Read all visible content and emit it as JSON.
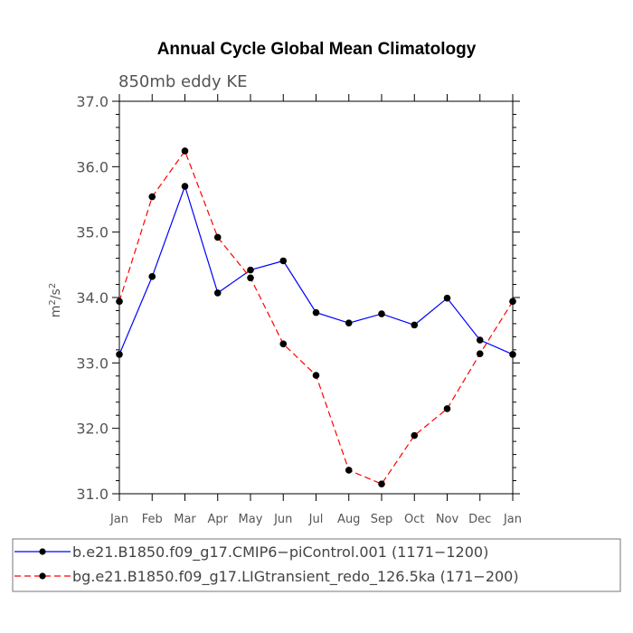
{
  "chart_data": {
    "type": "line",
    "title": "Annual Cycle Global Mean Climatology",
    "subtitle": "850mb eddy KE",
    "ylabel_base": "m",
    "ylabel_exp1": "2",
    "ylabel_sep": "/s",
    "ylabel_exp2": "2",
    "ylabel": "m²/s²",
    "xlabel": "",
    "categories": [
      "Jan",
      "Feb",
      "Mar",
      "Apr",
      "May",
      "Jun",
      "Jul",
      "Aug",
      "Sep",
      "Oct",
      "Nov",
      "Dec",
      "Jan"
    ],
    "ylim": [
      31.0,
      37.0
    ],
    "yticks": [
      31.0,
      32.0,
      33.0,
      34.0,
      35.0,
      36.0,
      37.0
    ],
    "ytick_labels": [
      "31.0",
      "32.0",
      "33.0",
      "34.0",
      "35.0",
      "36.0",
      "37.0"
    ],
    "series": [
      {
        "name": "b.e21.B1850.f09_g17.CMIP6−piControl.001 (1171−1200)",
        "color": "#0000ff",
        "dash": "solid",
        "values": [
          33.13,
          34.32,
          35.7,
          34.07,
          34.42,
          34.56,
          33.77,
          33.61,
          33.75,
          33.58,
          33.99,
          33.35,
          33.13
        ]
      },
      {
        "name": "bg.e21.B1850.f09_g17.LIGtransient_redo_126.5ka (171−200)",
        "color": "#ff0000",
        "dash": "dashed",
        "values": [
          33.94,
          35.54,
          36.24,
          34.92,
          34.3,
          33.29,
          32.81,
          31.36,
          31.15,
          31.89,
          32.3,
          33.14,
          33.94
        ]
      }
    ],
    "legend_position": "bottom"
  }
}
